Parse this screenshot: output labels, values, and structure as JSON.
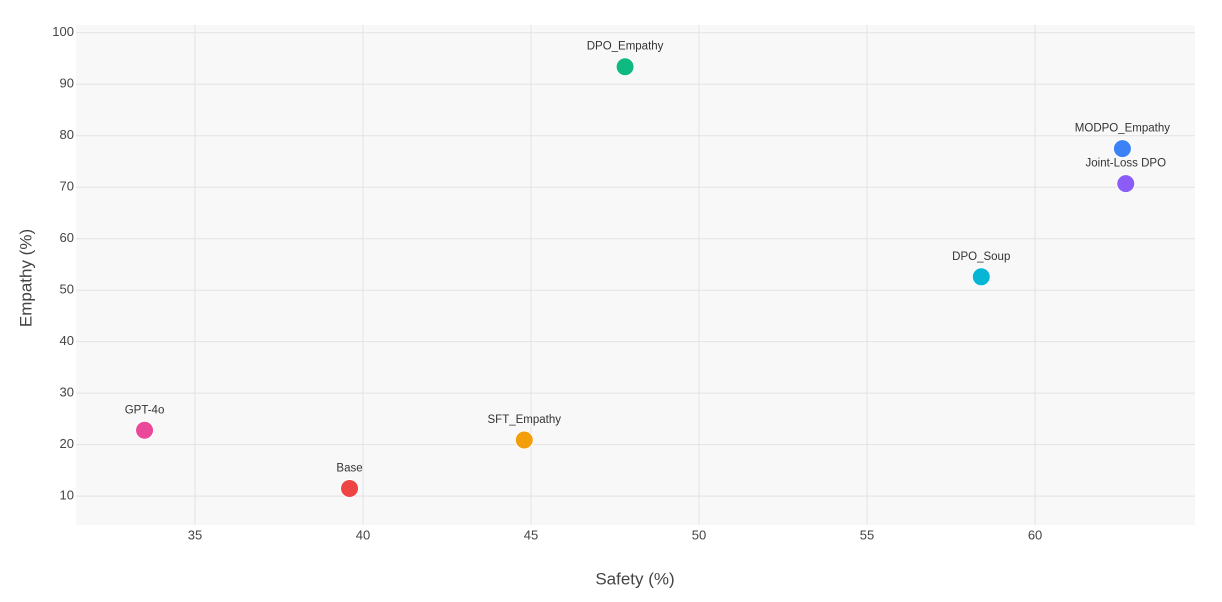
{
  "chart_data": {
    "type": "scatter",
    "x_label": "Safety (%)",
    "y_label": "Empathy (%)",
    "xlim": [
      31.46,
      64.76
    ],
    "ylim": [
      4.4,
      101.5
    ],
    "xticks": [
      35,
      40,
      45,
      50,
      55,
      60
    ],
    "yticks": [
      10,
      20,
      30,
      40,
      50,
      60,
      70,
      80,
      90,
      100
    ],
    "grid": true,
    "series": [
      {
        "name": "GPT-4o",
        "color": "#ec4899",
        "x": [
          33.5
        ],
        "values": [
          22.8
        ]
      },
      {
        "name": "Base",
        "color": "#ef4444",
        "x": [
          39.6
        ],
        "values": [
          11.5
        ]
      },
      {
        "name": "SFT_Empathy",
        "color": "#f59e0b",
        "x": [
          44.8
        ],
        "values": [
          20.9
        ]
      },
      {
        "name": "DPO_Empathy",
        "color": "#10b981",
        "x": [
          47.8
        ],
        "values": [
          93.4
        ]
      },
      {
        "name": "DPO_Soup",
        "color": "#06b6d4",
        "x": [
          58.4
        ],
        "values": [
          52.6
        ]
      },
      {
        "name": "MODPO_Empathy",
        "color": "#3b82f6",
        "x": [
          62.6
        ],
        "values": [
          77.5
        ]
      },
      {
        "name": "Joint-Loss DPO",
        "color": "#8b5cf6",
        "x": [
          62.7
        ],
        "values": [
          70.7
        ]
      }
    ]
  }
}
